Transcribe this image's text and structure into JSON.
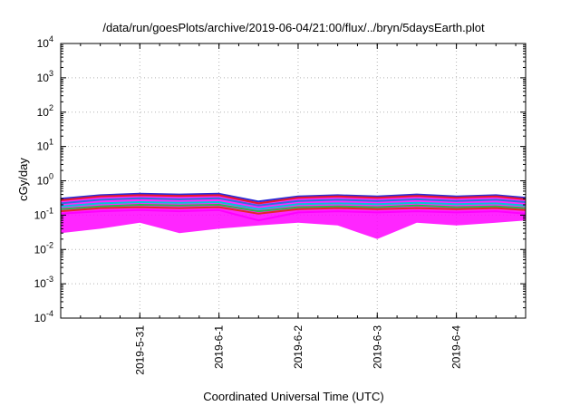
{
  "chart_data": {
    "type": "area",
    "title": "/data/run/goesPlots/archive/2019-06-04/21:00/flux/../bryn/5daysEarth.plot",
    "xlabel": "Coordinated Universal Time (UTC)",
    "ylabel": "cGy/day",
    "y_scale": "log",
    "ylim": [
      0.0001,
      10000
    ],
    "xlim": [
      "2019-05-30 00:00",
      "2019-06-04 21:00"
    ],
    "x_tick_labels": [
      "2019-5-31",
      "2019-6-1",
      "2019-6-2",
      "2019-6-3",
      "2019-6-4"
    ],
    "y_tick_labels": [
      {
        "base": "10",
        "exp": "4"
      },
      {
        "base": "10",
        "exp": "3"
      },
      {
        "base": "10",
        "exp": "2"
      },
      {
        "base": "10",
        "exp": "1"
      },
      {
        "base": "10",
        "exp": "0"
      },
      {
        "base": "10",
        "exp": "-1"
      },
      {
        "base": "10",
        "exp": "-2"
      },
      {
        "base": "10",
        "exp": "-3"
      },
      {
        "base": "10",
        "exp": "-4"
      }
    ],
    "grid": true,
    "x": [
      "2019-05-30 00:00",
      "2019-05-30 12:00",
      "2019-05-31 00:00",
      "2019-05-31 12:00",
      "2019-06-01 00:00",
      "2019-06-01 12:00",
      "2019-06-02 00:00",
      "2019-06-02 12:00",
      "2019-06-03 00:00",
      "2019-06-03 12:00",
      "2019-06-04 00:00",
      "2019-06-04 12:00",
      "2019-06-04 21:00"
    ],
    "series": [
      {
        "color": "#2b2bd6",
        "values": [
          0.3,
          0.38,
          0.42,
          0.4,
          0.42,
          0.25,
          0.35,
          0.38,
          0.35,
          0.4,
          0.35,
          0.38,
          0.32
        ]
      },
      {
        "color": "#e8182c",
        "values": [
          0.27,
          0.35,
          0.38,
          0.36,
          0.38,
          0.22,
          0.32,
          0.35,
          0.32,
          0.36,
          0.32,
          0.35,
          0.29
        ]
      },
      {
        "color": "#2f6fe0",
        "values": [
          0.22,
          0.28,
          0.31,
          0.29,
          0.31,
          0.19,
          0.26,
          0.28,
          0.26,
          0.29,
          0.26,
          0.28,
          0.24
        ]
      },
      {
        "color": "#00c8d8",
        "values": [
          0.18,
          0.22,
          0.24,
          0.23,
          0.24,
          0.15,
          0.21,
          0.22,
          0.21,
          0.23,
          0.21,
          0.22,
          0.19
        ]
      },
      {
        "color": "#2ab84a",
        "values": [
          0.15,
          0.18,
          0.2,
          0.19,
          0.2,
          0.13,
          0.17,
          0.18,
          0.17,
          0.19,
          0.17,
          0.18,
          0.16
        ]
      },
      {
        "color": "#e22828",
        "values": [
          0.13,
          0.16,
          0.17,
          0.16,
          0.17,
          0.11,
          0.15,
          0.16,
          0.15,
          0.16,
          0.15,
          0.16,
          0.14
        ]
      },
      {
        "color": "#ff00ff",
        "values": [
          0.11,
          0.13,
          0.14,
          0.13,
          0.14,
          0.07,
          0.12,
          0.13,
          0.12,
          0.13,
          0.12,
          0.13,
          0.11
        ]
      }
    ],
    "band_min": [
      0.03,
      0.04,
      0.06,
      0.03,
      0.04,
      0.05,
      0.06,
      0.05,
      0.02,
      0.06,
      0.05,
      0.06,
      0.07
    ],
    "band_color": "#ff00ff"
  }
}
